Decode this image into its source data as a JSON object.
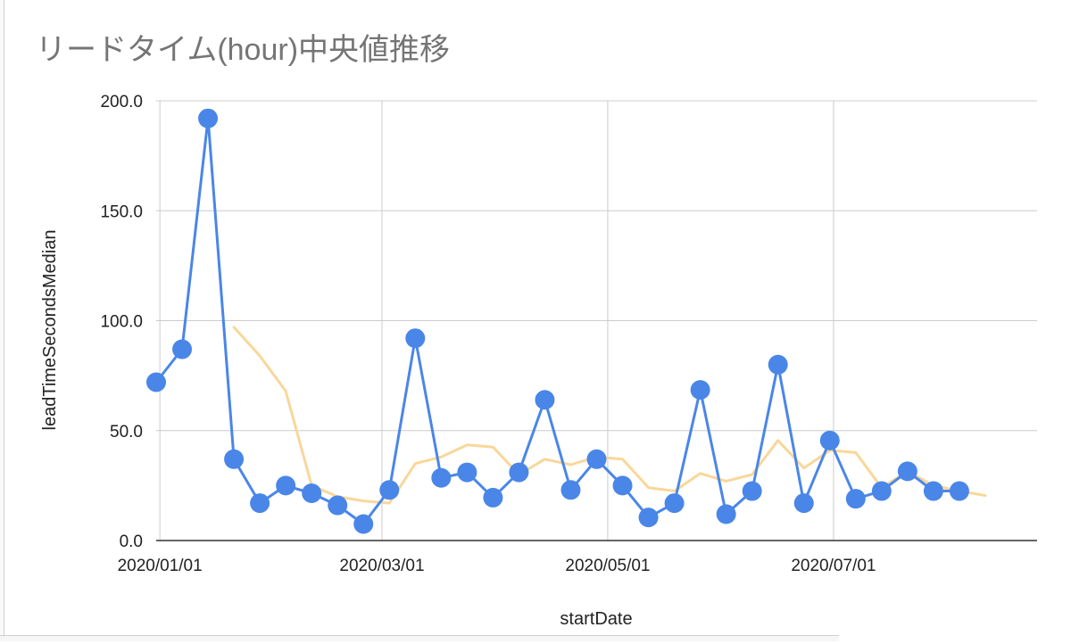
{
  "chart_data": {
    "type": "line",
    "title": "リードタイム(hour)中央値推移",
    "xlabel": "startDate",
    "ylabel": "leadTimeSecondsMedian",
    "ylim": [
      0,
      200
    ],
    "yticks": [
      "0.0",
      "50.0",
      "100.0",
      "150.0",
      "200.0"
    ],
    "xrange": [
      "2019-12-31",
      "2020-08-25"
    ],
    "xticks": [
      {
        "date": "2020-01-01",
        "label": "2020/01/01"
      },
      {
        "date": "2020-03-01",
        "label": "2020/03/01"
      },
      {
        "date": "2020-05-01",
        "label": "2020/05/01"
      },
      {
        "date": "2020-07-01",
        "label": "2020/07/01"
      }
    ],
    "grid": true,
    "legend": "none",
    "series": [
      {
        "color": "#4a86e8",
        "marker": "circle",
        "x": [
          "2019-12-31",
          "2020-01-07",
          "2020-01-14",
          "2020-01-21",
          "2020-01-28",
          "2020-02-04",
          "2020-02-11",
          "2020-02-18",
          "2020-02-25",
          "2020-03-03",
          "2020-03-10",
          "2020-03-17",
          "2020-03-24",
          "2020-03-31",
          "2020-04-07",
          "2020-04-14",
          "2020-04-21",
          "2020-04-28",
          "2020-05-05",
          "2020-05-12",
          "2020-05-19",
          "2020-05-26",
          "2020-06-02",
          "2020-06-09",
          "2020-06-16",
          "2020-06-23",
          "2020-06-30",
          "2020-07-07",
          "2020-07-14",
          "2020-07-21",
          "2020-07-28",
          "2020-08-04"
        ],
        "values": [
          72,
          87,
          192,
          37,
          17,
          25,
          21.5,
          16,
          7.5,
          23,
          92,
          28.5,
          31,
          19.5,
          31,
          64,
          23,
          37,
          25,
          10.5,
          17,
          68.5,
          12,
          22.5,
          80,
          17,
          45.5,
          19,
          22.5,
          31.5,
          22.5,
          22.5
        ]
      },
      {
        "color": "#f9d79a",
        "marker": "none",
        "x": [
          "2020-01-21",
          "2020-01-28",
          "2020-02-04",
          "2020-02-11",
          "2020-02-18",
          "2020-02-25",
          "2020-03-03",
          "2020-03-10",
          "2020-03-17",
          "2020-03-24",
          "2020-03-31",
          "2020-04-07",
          "2020-04-14",
          "2020-04-21",
          "2020-04-28",
          "2020-05-05",
          "2020-05-12",
          "2020-05-19",
          "2020-05-26",
          "2020-06-02",
          "2020-06-09",
          "2020-06-16",
          "2020-06-23",
          "2020-06-30",
          "2020-07-07",
          "2020-07-14",
          "2020-07-21",
          "2020-07-28",
          "2020-08-04",
          "2020-08-11"
        ],
        "values": [
          97,
          84,
          68,
          25,
          20,
          18,
          17,
          35,
          38,
          43.5,
          42.5,
          30,
          37,
          34.5,
          38,
          37,
          24,
          22.5,
          30.5,
          27,
          30,
          45.5,
          33,
          41,
          40,
          24,
          31.5,
          25,
          22.5,
          20.5
        ]
      }
    ]
  }
}
